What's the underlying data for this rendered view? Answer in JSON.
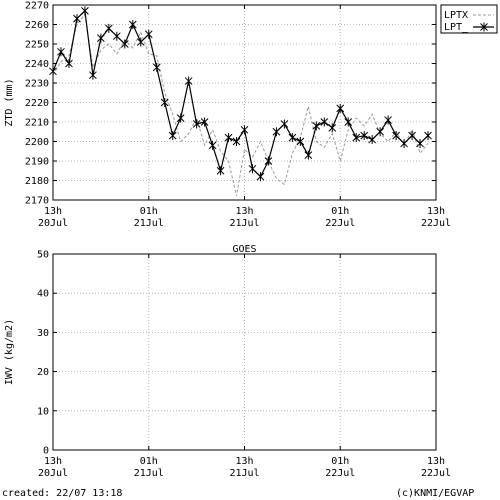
{
  "footer": {
    "created": "created: 22/07 13:18",
    "copyright": "(c)KNMI/EGVAP"
  },
  "chart_data": [
    {
      "type": "line",
      "title": "",
      "ylabel": "ZTD (mm)",
      "xlabel": "",
      "ylim": [
        2170,
        2270
      ],
      "yticks": [
        2170,
        2180,
        2190,
        2200,
        2210,
        2220,
        2230,
        2240,
        2250,
        2260,
        2270
      ],
      "xlim_hours": [
        0,
        48
      ],
      "xticks": [
        {
          "hour": 0,
          "line1": "13h",
          "line2": "20Jul"
        },
        {
          "hour": 12,
          "line1": "01h",
          "line2": "21Jul"
        },
        {
          "hour": 24,
          "line1": "13h",
          "line2": "21Jul"
        },
        {
          "hour": 36,
          "line1": "01h",
          "line2": "22Jul"
        },
        {
          "hour": 48,
          "line1": "13h",
          "line2": "22Jul"
        }
      ],
      "grid": true,
      "legend_position": "outside-right",
      "series": [
        {
          "name": "LPTX",
          "style": "dashed",
          "color": "#9a9a9a",
          "x": [
            0,
            1,
            2,
            3,
            4,
            5,
            6,
            7,
            8,
            9,
            10,
            11,
            12,
            13,
            14,
            15,
            16,
            17,
            18,
            19,
            20,
            21,
            22,
            23,
            24,
            25,
            26,
            27,
            28,
            29,
            30,
            31,
            32,
            33,
            34,
            35,
            36,
            37,
            38,
            39,
            40,
            41,
            42,
            43,
            44,
            45,
            46,
            47
          ],
          "values": [
            2234,
            2241,
            2244,
            2260,
            2265,
            2238,
            2247,
            2250,
            2245,
            2252,
            2248,
            2256,
            2245,
            2244,
            2225,
            2214,
            2200,
            2204,
            2212,
            2198,
            2206,
            2195,
            2190,
            2172,
            2196,
            2192,
            2200,
            2190,
            2181,
            2178,
            2194,
            2202,
            2218,
            2200,
            2197,
            2204,
            2190,
            2206,
            2212,
            2208,
            2214,
            2204,
            2200,
            2205,
            2198,
            2206,
            2194,
            2199
          ]
        },
        {
          "name": "LPT_",
          "style": "solid-with-x-markers",
          "color": "#000000",
          "x": [
            0,
            1,
            2,
            3,
            4,
            5,
            6,
            7,
            8,
            9,
            10,
            11,
            12,
            13,
            14,
            15,
            16,
            17,
            18,
            19,
            20,
            21,
            22,
            23,
            24,
            25,
            26,
            27,
            28,
            29,
            30,
            31,
            32,
            33,
            34,
            35,
            36,
            37,
            38,
            39,
            40,
            41,
            42,
            43,
            44,
            45,
            46,
            47
          ],
          "values": [
            2236,
            2246,
            2240,
            2263,
            2267,
            2234,
            2253,
            2258,
            2254,
            2250,
            2260,
            2251,
            2255,
            2238,
            2220,
            2203,
            2212,
            2231,
            2209,
            2210,
            2198,
            2185,
            2202,
            2200,
            2206,
            2186,
            2182,
            2190,
            2205,
            2209,
            2202,
            2200,
            2193,
            2208,
            2210,
            2207,
            2217,
            2210,
            2202,
            2203,
            2201,
            2205,
            2211,
            2203,
            2199,
            2203,
            2199,
            2203
          ]
        }
      ]
    },
    {
      "type": "line",
      "title": "GOES",
      "ylabel": "IWV (kg/m2)",
      "xlabel": "",
      "ylim": [
        0,
        50
      ],
      "yticks": [
        0,
        10,
        20,
        30,
        40,
        50
      ],
      "xlim_hours": [
        0,
        48
      ],
      "xticks": [
        {
          "hour": 0,
          "line1": "13h",
          "line2": "20Jul"
        },
        {
          "hour": 12,
          "line1": "01h",
          "line2": "21Jul"
        },
        {
          "hour": 24,
          "line1": "13h",
          "line2": "21Jul"
        },
        {
          "hour": 36,
          "line1": "01h",
          "line2": "22Jul"
        },
        {
          "hour": 48,
          "line1": "13h",
          "line2": "22Jul"
        }
      ],
      "grid": true,
      "series": []
    }
  ]
}
